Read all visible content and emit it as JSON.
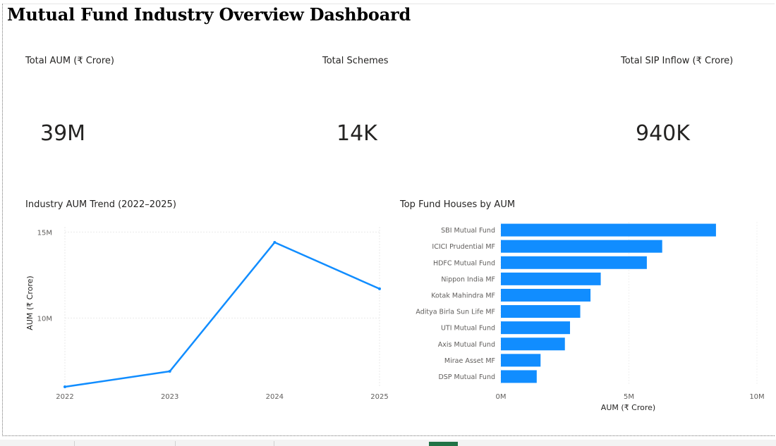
{
  "title": "Mutual Fund Industry Overview Dashboard",
  "kpis": {
    "total_aum": {
      "label": "Total AUM (₹ Crore)",
      "value": "39M"
    },
    "total_schemes": {
      "label": "Total Schemes",
      "value": "14K"
    },
    "total_sip": {
      "label": "Total SIP Inflow (₹ Crore)",
      "value": "940K"
    }
  },
  "colors": {
    "accent": "#118DFF",
    "grid": "#e9e9e9",
    "text": "#252423",
    "axis_text": "#605E5C"
  },
  "chart_data": [
    {
      "type": "line",
      "title": "Industry AUM Trend (2022–2025)",
      "x": [
        "2022",
        "2023",
        "2024",
        "2025"
      ],
      "series": [
        {
          "values": [
            6.0,
            6.9,
            14.4,
            11.7
          ]
        }
      ],
      "xlabel": "",
      "ylabel": "AUM (₹ Crore)",
      "y_unit": "M",
      "y_ticks": [
        {
          "value": 10,
          "label": "10M"
        },
        {
          "value": 15,
          "label": "15M"
        }
      ],
      "ylim": [
        6.0,
        15.3
      ],
      "grid": true
    },
    {
      "type": "bar",
      "orientation": "horizontal",
      "title": "Top Fund Houses by AUM",
      "categories": [
        "SBI Mutual Fund",
        "ICICI Prudential MF",
        "HDFC Mutual Fund",
        "Nippon India MF",
        "Kotak Mahindra MF",
        "Aditya Birla Sun Life MF",
        "UTI Mutual Fund",
        "Axis Mutual Fund",
        "Mirae Asset MF",
        "DSP Mutual Fund"
      ],
      "values": [
        8.4,
        6.3,
        5.7,
        3.9,
        3.5,
        3.1,
        2.7,
        2.5,
        1.55,
        1.4
      ],
      "value_unit": "M",
      "xlabel": "AUM (₹ Crore)",
      "ylabel": "",
      "x_ticks": [
        {
          "value": 0,
          "label": "0M"
        },
        {
          "value": 5,
          "label": "5M"
        },
        {
          "value": 10,
          "label": "10M"
        }
      ],
      "xlim": [
        0,
        10
      ]
    }
  ]
}
